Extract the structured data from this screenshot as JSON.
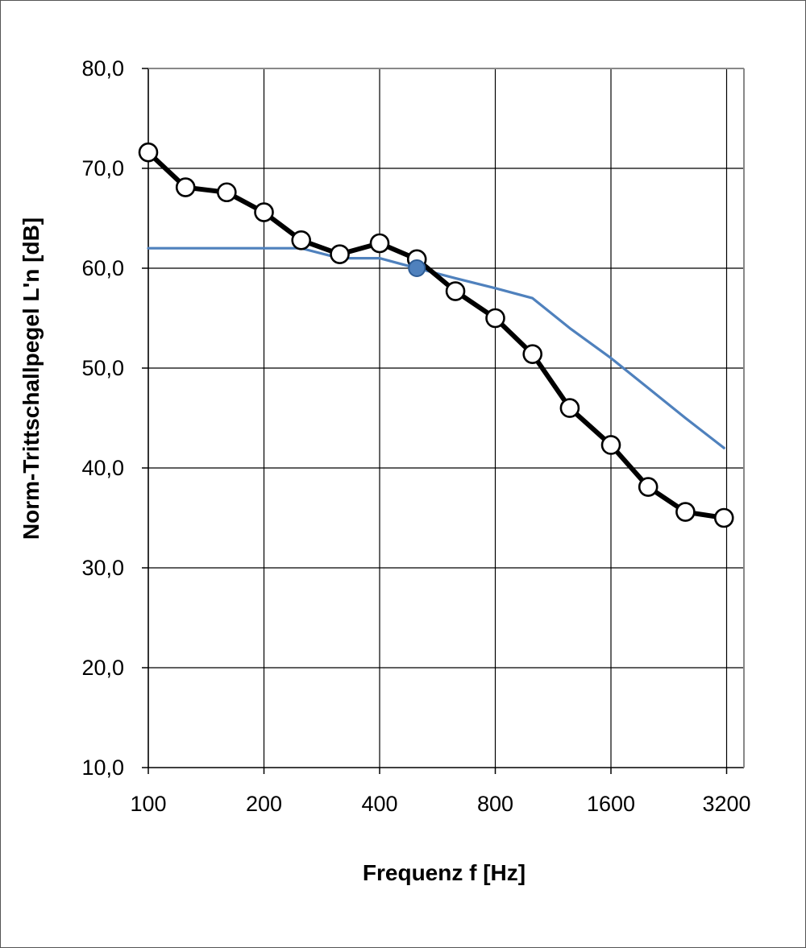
{
  "chart_data": {
    "type": "line",
    "xlabel": "Frequenz f [Hz]",
    "ylabel": "Norm-Trittschallpegel L'n [dB]",
    "x_scale": "log2",
    "xlim": [
      100,
      3550
    ],
    "ylim": [
      10,
      80
    ],
    "x_ticks": [
      100,
      200,
      400,
      800,
      1600,
      3200
    ],
    "x_tick_labels": [
      "100",
      "200",
      "400",
      "800",
      "1600",
      "3200"
    ],
    "y_ticks": [
      10,
      20,
      30,
      40,
      50,
      60,
      70,
      80
    ],
    "y_tick_labels": [
      "10,0",
      "20,0",
      "30,0",
      "40,0",
      "50,0",
      "60,0",
      "70,0",
      "80,0"
    ],
    "grid": true,
    "legend": "none",
    "series": [
      {
        "color": "#000000",
        "marker": "open-circle",
        "x": [
          100,
          125,
          160,
          200,
          250,
          315,
          400,
          500,
          630,
          800,
          1000,
          1250,
          1600,
          2000,
          2500,
          3150
        ],
        "values": [
          71.6,
          68.1,
          67.6,
          65.6,
          62.8,
          61.4,
          62.5,
          60.9,
          57.7,
          55.0,
          51.4,
          46.0,
          42.3,
          38.1,
          35.6,
          35.0
        ]
      },
      {
        "color": "#4f81bd",
        "marker": "none",
        "x": [
          100,
          125,
          160,
          200,
          250,
          315,
          400,
          500,
          630,
          800,
          1000,
          1250,
          1600,
          2000,
          2500,
          3150
        ],
        "values": [
          62,
          62,
          62,
          62,
          62,
          61,
          61,
          60,
          59,
          58,
          57,
          54,
          51,
          48,
          45,
          42
        ],
        "highlight": {
          "x": 500,
          "value": 60
        }
      }
    ]
  }
}
